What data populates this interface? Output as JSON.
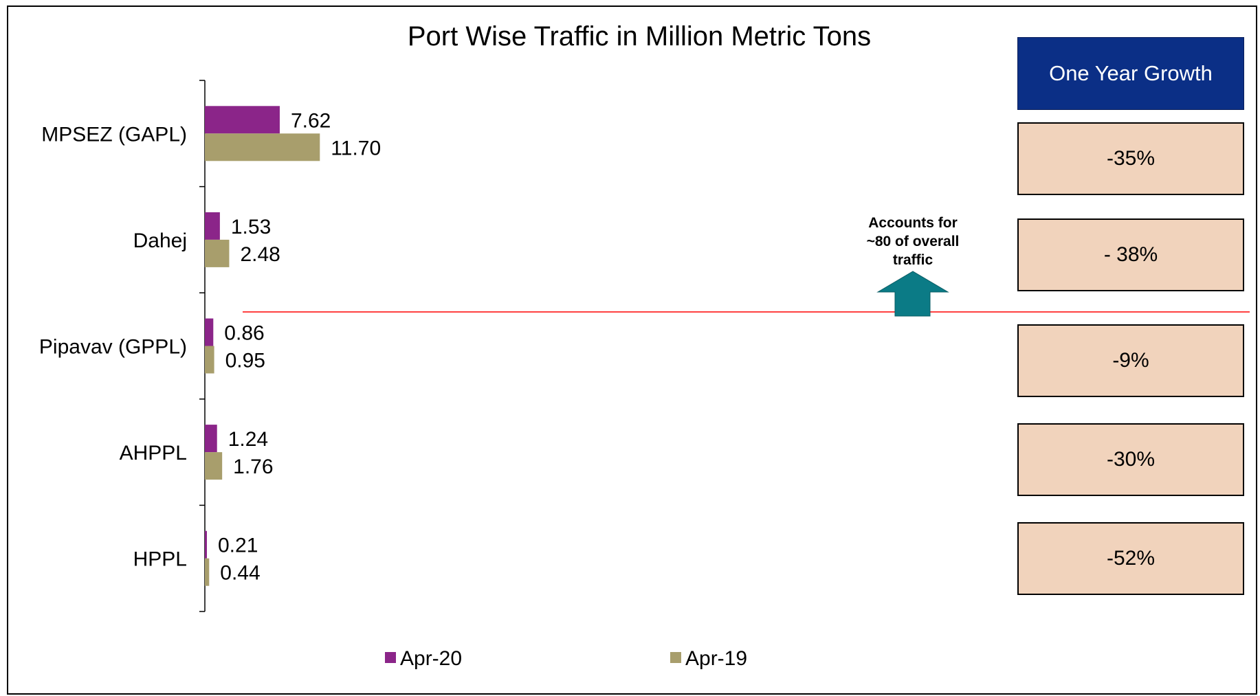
{
  "chart_data": {
    "type": "bar",
    "orientation": "horizontal",
    "title": "Port Wise Traffic in Million Metric Tons",
    "categories": [
      "MPSEZ (GAPL)",
      "Dahej",
      "Pipavav (GPPL)",
      "AHPPL",
      "HPPL"
    ],
    "series": [
      {
        "name": "Apr-20",
        "color": "#8b2589",
        "values": [
          7.62,
          1.53,
          0.86,
          1.24,
          0.21
        ],
        "labels": [
          "7.62",
          "1.53",
          "0.86",
          "1.24",
          "0.21"
        ]
      },
      {
        "name": "Apr-19",
        "color": "#a89e6c",
        "values": [
          11.7,
          2.48,
          0.95,
          1.76,
          0.44
        ],
        "labels": [
          "11.70",
          "2.48",
          "0.95",
          "1.76",
          "0.44"
        ]
      }
    ],
    "xlim": [
      0,
      100
    ],
    "grid": false,
    "legend_position": "bottom"
  },
  "growth": {
    "header": "One Year Growth",
    "values": [
      "-35%",
      "- 38%",
      "-9%",
      "-30%",
      "-52%"
    ]
  },
  "annotation": {
    "lines": [
      "Accounts for",
      "~80 of overall",
      "traffic"
    ],
    "arrow_color": "#0b7b86",
    "divider_color": "#ff0000"
  }
}
